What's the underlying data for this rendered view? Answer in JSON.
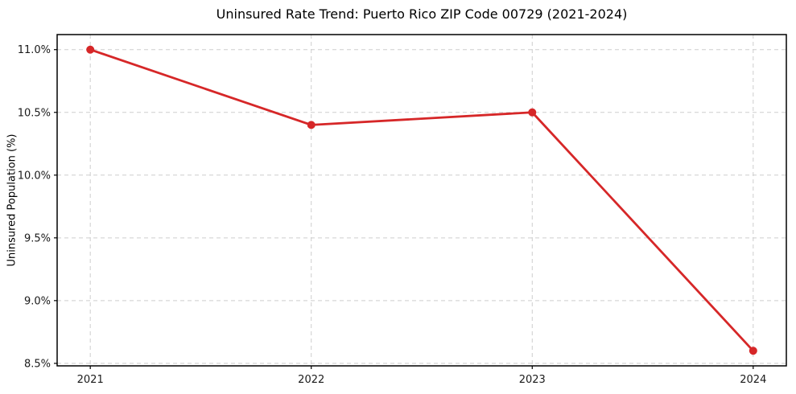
{
  "chart_data": {
    "type": "line",
    "title": "Uninsured Rate Trend: Puerto Rico ZIP Code 00729 (2021-2024)",
    "xlabel": "",
    "ylabel": "Uninsured Population (%)",
    "x": [
      2021,
      2022,
      2023,
      2024
    ],
    "x_tick_labels": [
      "2021",
      "2022",
      "2023",
      "2024"
    ],
    "values": [
      11.0,
      10.4,
      10.5,
      8.6
    ],
    "y_ticks": [
      8.5,
      9.0,
      9.5,
      10.0,
      10.5,
      11.0
    ],
    "y_tick_labels": [
      "8.5%",
      "9.0%",
      "9.5%",
      "10.0%",
      "10.5%",
      "11.0%"
    ],
    "xlim": [
      2020.85,
      2024.15
    ],
    "ylim": [
      8.48,
      11.12
    ],
    "grid": true,
    "legend": "none",
    "line_color": "#d62728",
    "marker_color": "#d62728",
    "grid_color": "#cdcdcd",
    "spine_color": "#000000",
    "background_color": "#ffffff"
  }
}
